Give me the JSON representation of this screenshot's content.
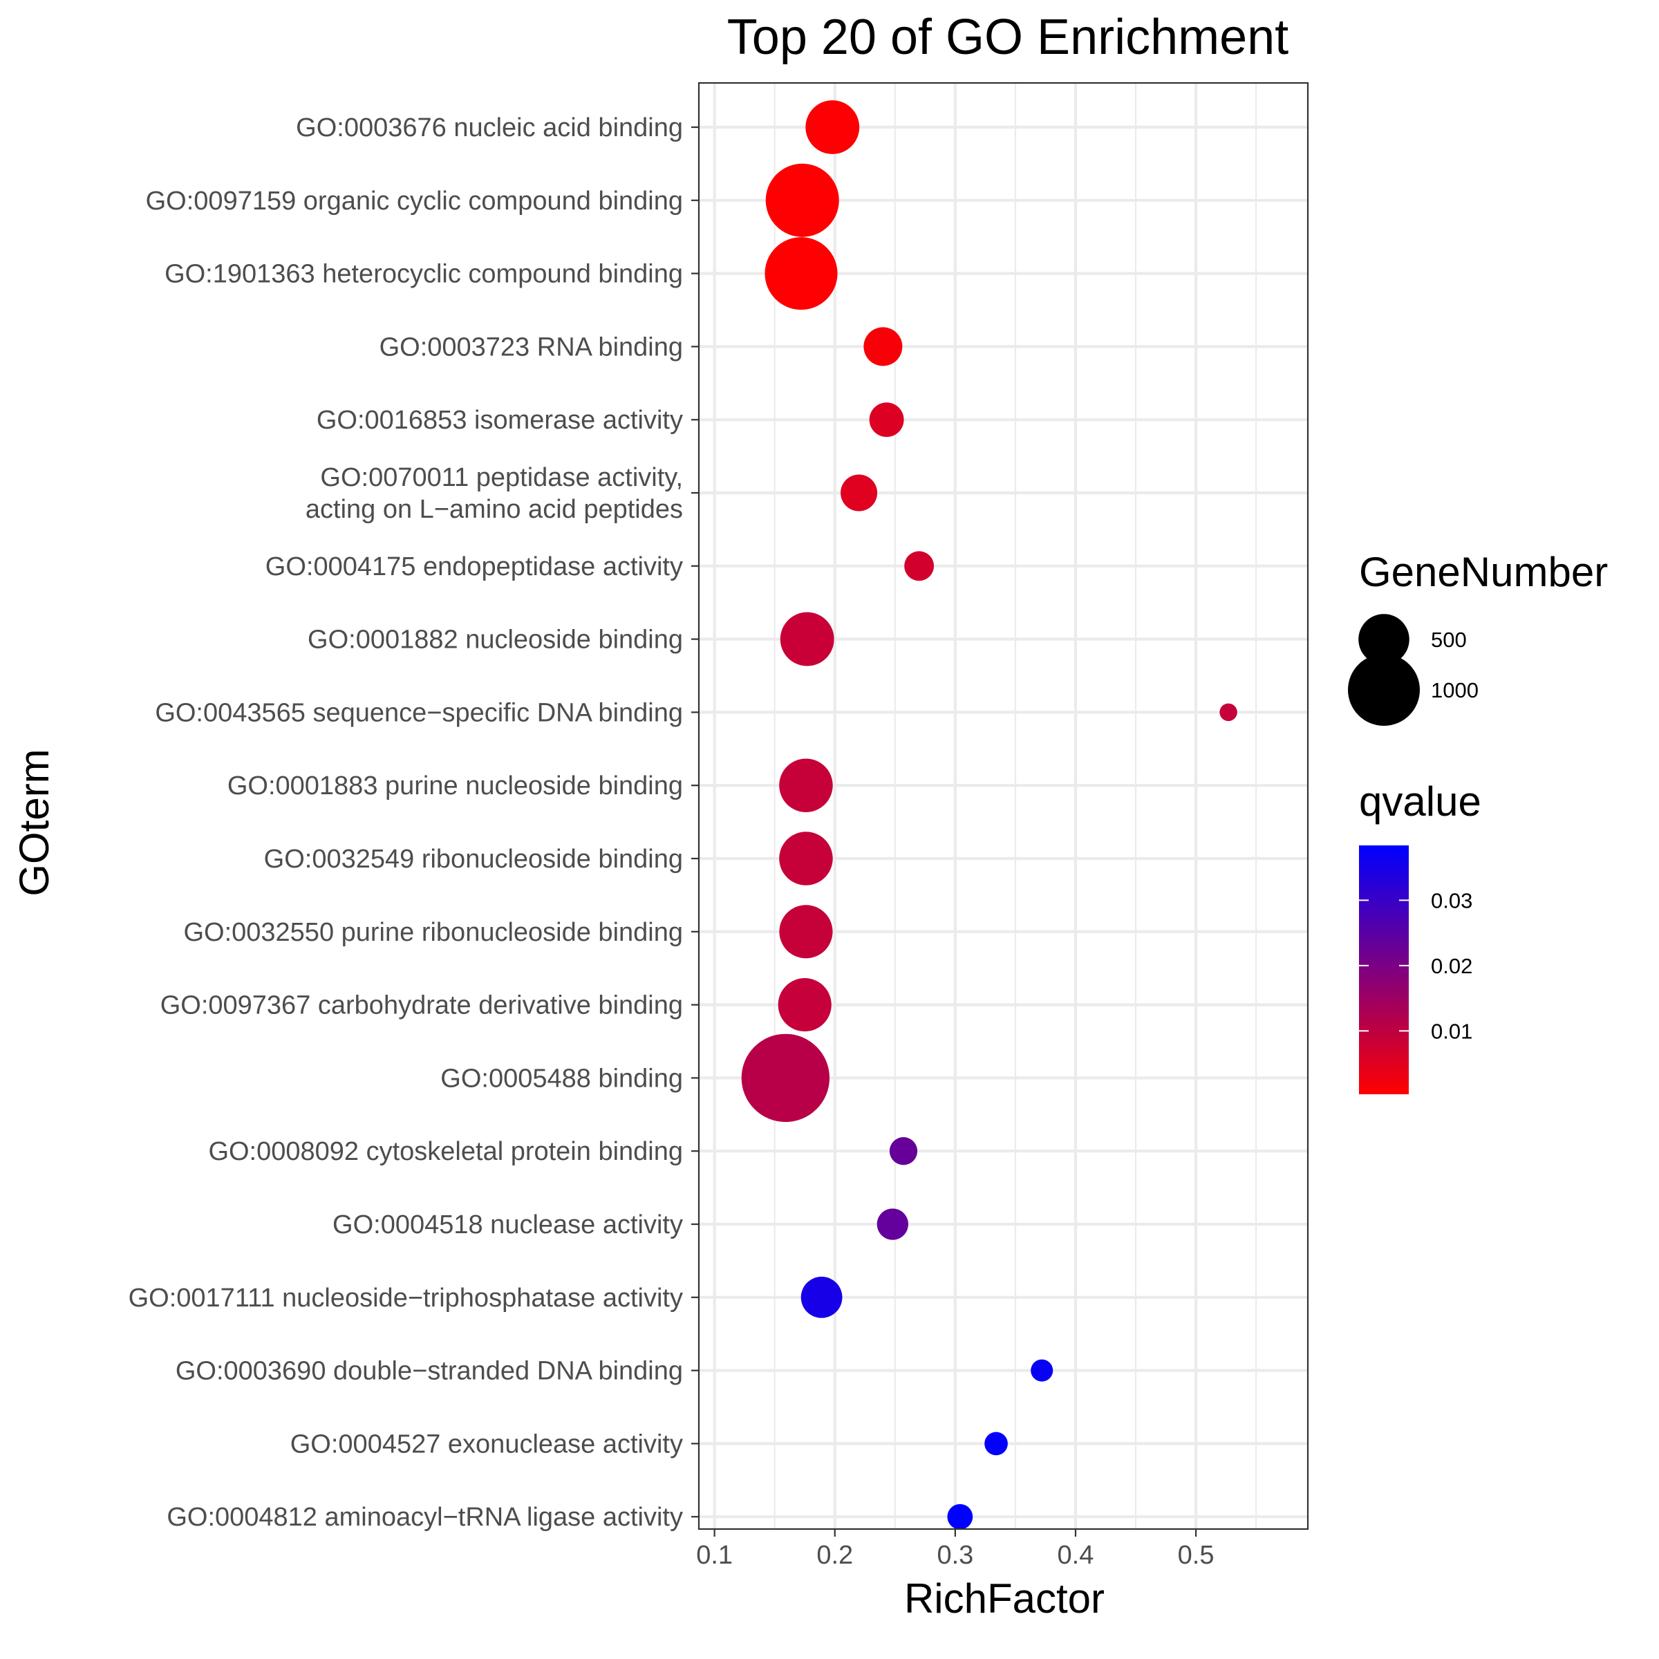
{
  "chart_data": {
    "type": "scatter",
    "title": "Top 20 of GO Enrichment",
    "xlabel": "RichFactor",
    "ylabel": "GOterm",
    "xlim": [
      0.087,
      0.593
    ],
    "x_ticks": [
      "0.1",
      "0.2",
      "0.3",
      "0.4",
      "0.5"
    ],
    "x_tick_values": [
      0.1,
      0.2,
      0.3,
      0.4,
      0.5
    ],
    "grid": true,
    "size_legend": {
      "title": "GeneNumber",
      "entries": [
        {
          "label": "500",
          "value": 500
        },
        {
          "label": "1000",
          "value": 1000
        }
      ]
    },
    "color_legend": {
      "title": "qvalue",
      "low_color": "#ff0000",
      "high_color": "#0000ff",
      "range": [
        0.0003,
        0.0384
      ],
      "ticks": [
        {
          "label": "0.01",
          "value": 0.01
        },
        {
          "label": "0.02",
          "value": 0.02
        },
        {
          "label": "0.03",
          "value": 0.03
        }
      ]
    },
    "points": [
      {
        "term": "GO:0003676 nucleic acid binding",
        "richfactor": 0.198,
        "gene_number": 560,
        "qvalue": 0.0008
      },
      {
        "term": "GO:0097159 organic cyclic compound binding",
        "richfactor": 0.173,
        "gene_number": 1040,
        "qvalue": 0.0004
      },
      {
        "term": "GO:1901363 heterocyclic compound binding",
        "richfactor": 0.172,
        "gene_number": 1020,
        "qvalue": 0.0004
      },
      {
        "term": "GO:0003723 RNA binding",
        "richfactor": 0.24,
        "gene_number": 290,
        "qvalue": 0.0015
      },
      {
        "term": "GO:0016853 isomerase activity",
        "richfactor": 0.243,
        "gene_number": 230,
        "qvalue": 0.0055
      },
      {
        "term": "GO:0070011 peptidase activity,\nacting on L−amino acid peptides",
        "richfactor": 0.22,
        "gene_number": 260,
        "qvalue": 0.005
      },
      {
        "term": "GO:0004175 endopeptidase activity",
        "richfactor": 0.27,
        "gene_number": 170,
        "qvalue": 0.007
      },
      {
        "term": "GO:0001882 nucleoside binding",
        "richfactor": 0.177,
        "gene_number": 560,
        "qvalue": 0.0085
      },
      {
        "term": "GO:0043565 sequence−specific DNA binding",
        "richfactor": 0.527,
        "gene_number": 60,
        "qvalue": 0.009
      },
      {
        "term": "GO:0001883 purine nucleoside binding",
        "richfactor": 0.176,
        "gene_number": 555,
        "qvalue": 0.0088
      },
      {
        "term": "GO:0032549 ribonucleoside binding",
        "richfactor": 0.176,
        "gene_number": 555,
        "qvalue": 0.0088
      },
      {
        "term": "GO:0032550 purine ribonucleoside binding",
        "richfactor": 0.176,
        "gene_number": 550,
        "qvalue": 0.0088
      },
      {
        "term": "GO:0097367 carbohydrate derivative binding",
        "richfactor": 0.175,
        "gene_number": 550,
        "qvalue": 0.009
      },
      {
        "term": "GO:0005488 binding",
        "richfactor": 0.159,
        "gene_number": 1500,
        "qvalue": 0.011
      },
      {
        "term": "GO:0008092 cytoskeletal protein binding",
        "richfactor": 0.257,
        "gene_number": 150,
        "qvalue": 0.023
      },
      {
        "term": "GO:0004518 nuclease activity",
        "richfactor": 0.248,
        "gene_number": 190,
        "qvalue": 0.0235
      },
      {
        "term": "GO:0017111 nucleoside−triphosphatase activity",
        "richfactor": 0.189,
        "gene_number": 330,
        "qvalue": 0.035
      },
      {
        "term": "GO:0003690 double−stranded DNA binding",
        "richfactor": 0.372,
        "gene_number": 95,
        "qvalue": 0.037
      },
      {
        "term": "GO:0004527 exonuclease activity",
        "richfactor": 0.334,
        "gene_number": 105,
        "qvalue": 0.038
      },
      {
        "term": "GO:0004812 aminoacyl−tRNA ligase activity",
        "richfactor": 0.304,
        "gene_number": 125,
        "qvalue": 0.0384
      }
    ]
  }
}
